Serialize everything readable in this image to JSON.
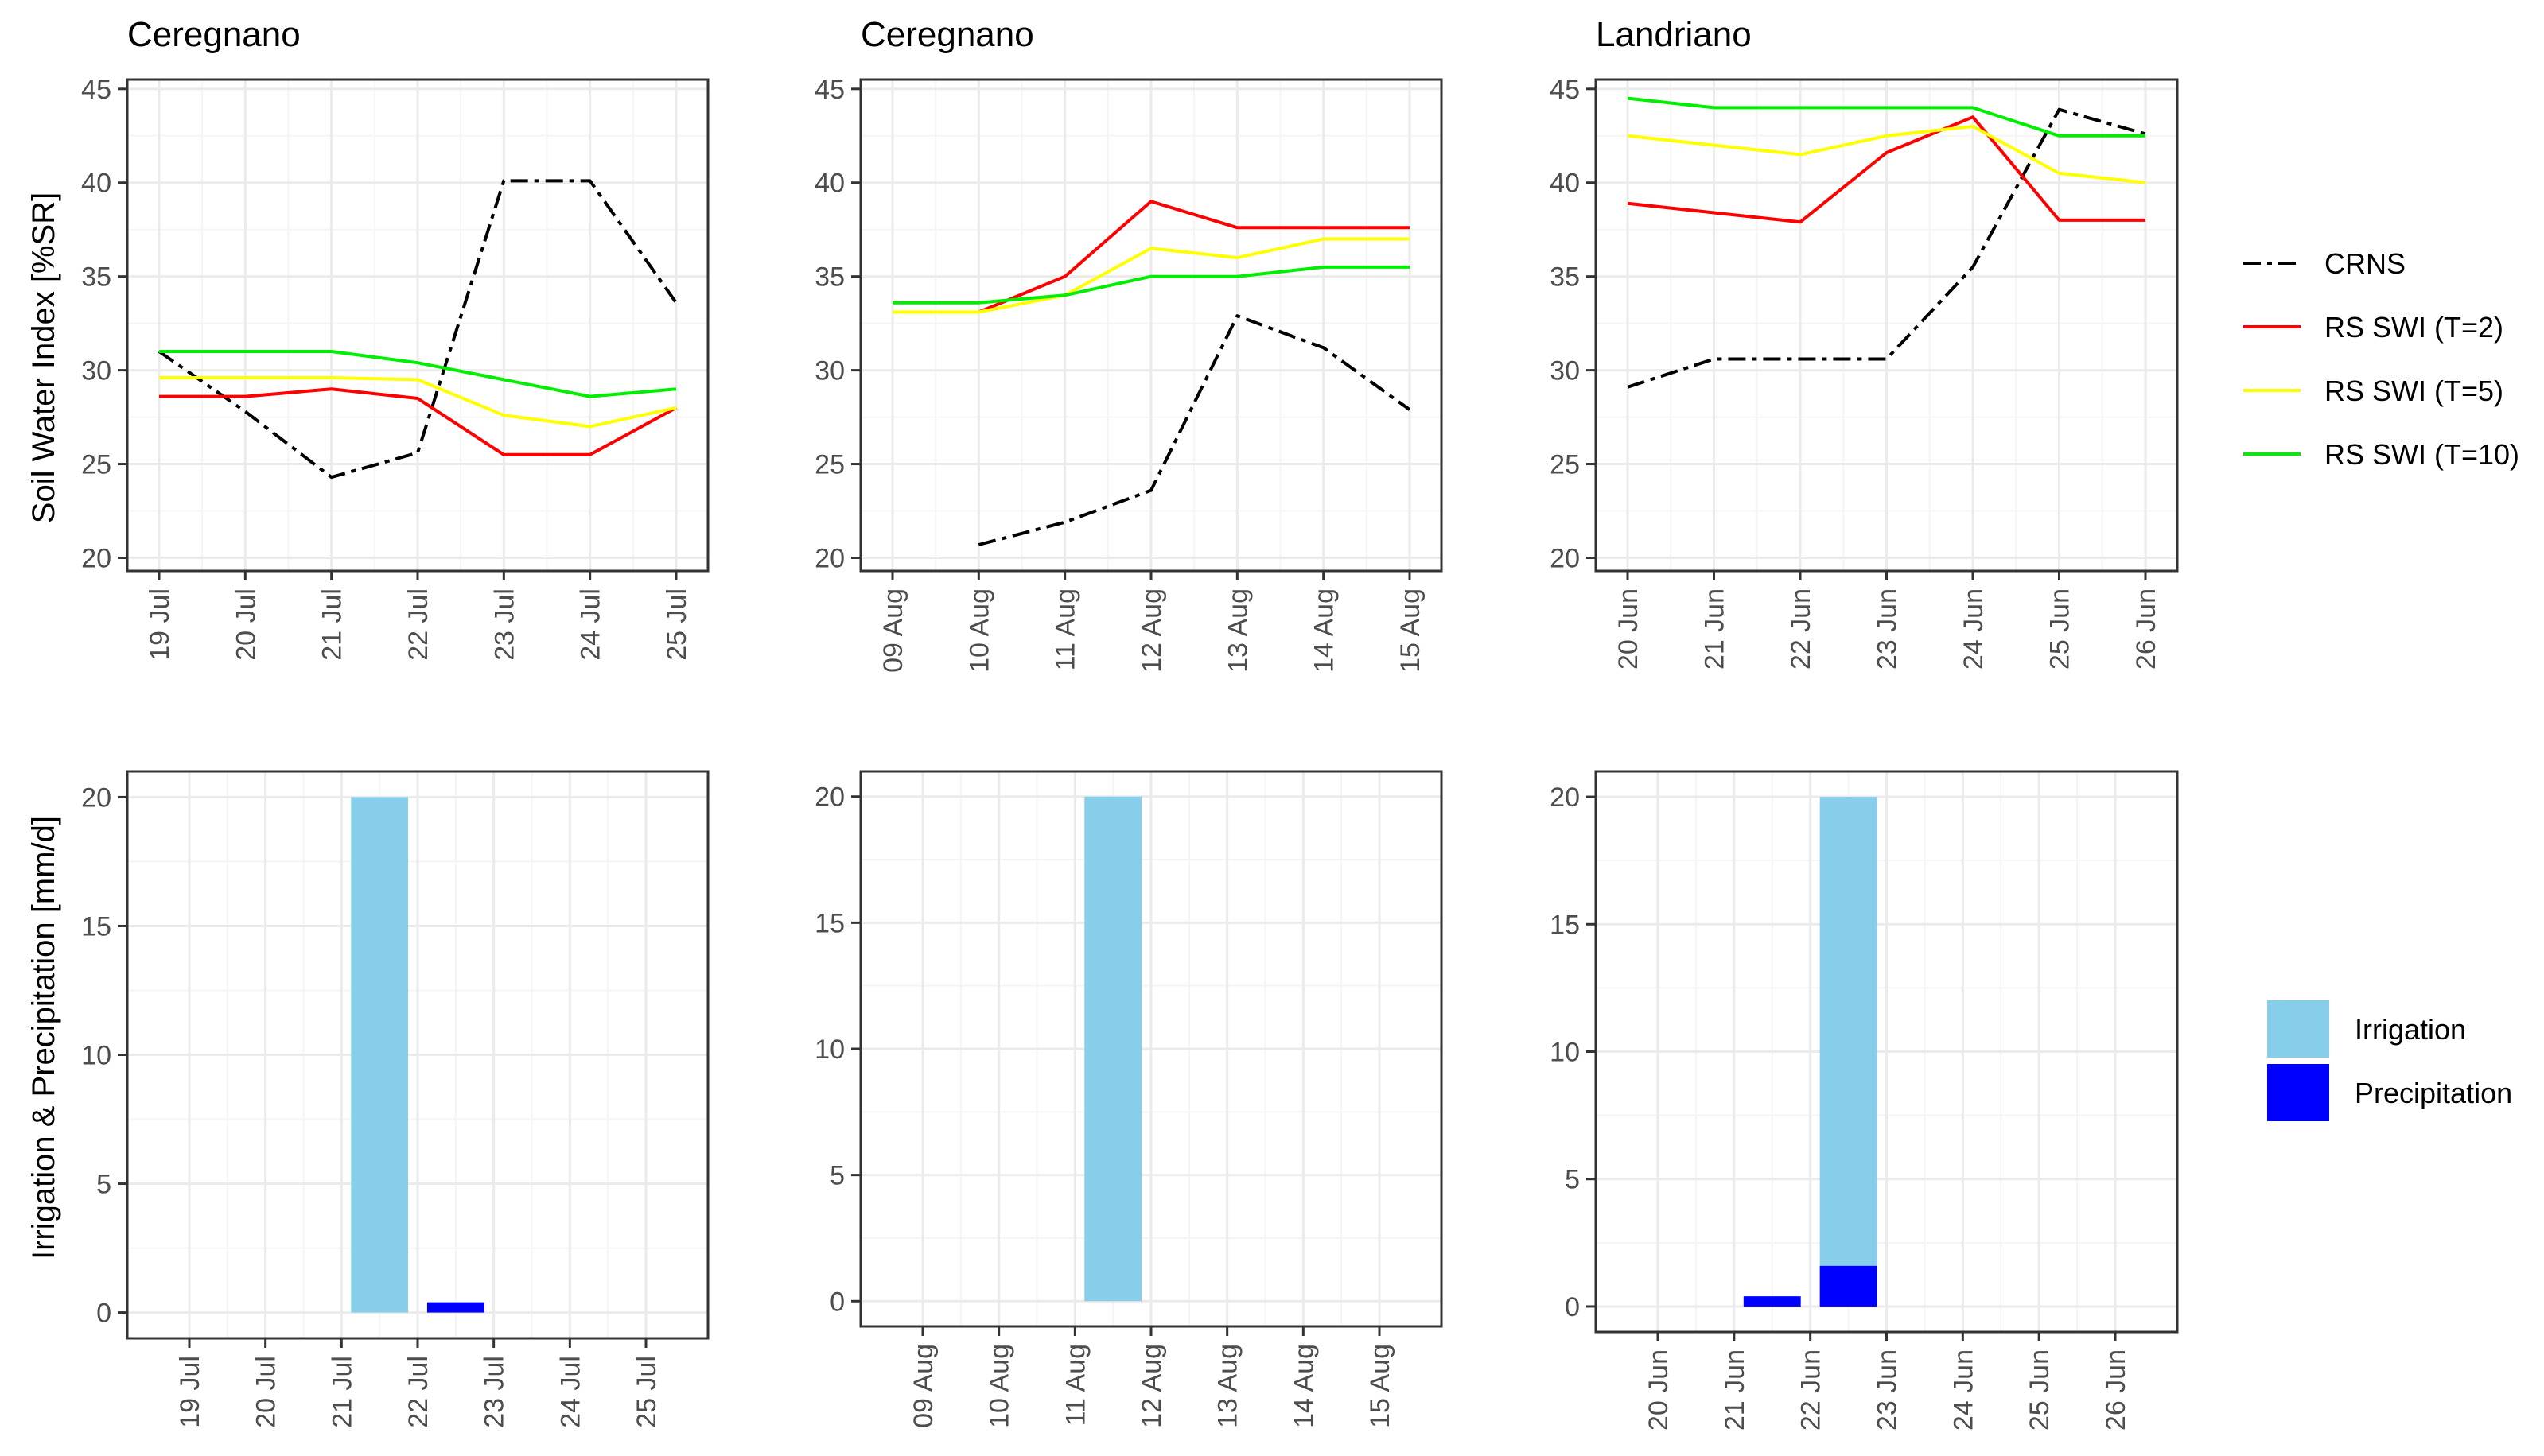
{
  "colors": {
    "crns": "#000000",
    "swi_t2": "#ff0000",
    "swi_t5": "#ffff00",
    "swi_t10": "#00ee00",
    "irrigation": "#87ceeb",
    "precipitation": "#0000ff",
    "grid_major": "#ebebeb",
    "grid_minor": "#f5f5f5",
    "panel_border": "#333333"
  },
  "legend_lines": {
    "entries": [
      {
        "label": "CRNS",
        "series": "crns"
      },
      {
        "label": "RS SWI (T=2)",
        "series": "swi_t2"
      },
      {
        "label": "RS SWI (T=5)",
        "series": "swi_t5"
      },
      {
        "label": "RS SWI (T=10)",
        "series": "swi_t10"
      }
    ]
  },
  "legend_bars": {
    "entries": [
      {
        "label": "Irrigation",
        "series": "irrigation"
      },
      {
        "label": "Precipitation",
        "series": "precipitation"
      }
    ]
  },
  "chart_data": [
    {
      "type": "line",
      "title": "Ceregnano",
      "ylabel": "Soil Water Index [%SR]",
      "xlabel": "",
      "categories": [
        "19 Jul",
        "20 Jul",
        "21 Jul",
        "22 Jul",
        "23 Jul",
        "24 Jul",
        "25 Jul"
      ],
      "ylim": [
        19.3,
        45.5
      ],
      "yticks": [
        20,
        25,
        30,
        35,
        40,
        45
      ],
      "grid": true,
      "series": [
        {
          "name": "CRNS",
          "key": "crns",
          "dash": true,
          "values": [
            31.0,
            27.8,
            24.3,
            25.6,
            40.1,
            40.1,
            33.6
          ]
        },
        {
          "name": "RS SWI (T=2)",
          "key": "swi_t2",
          "values": [
            28.6,
            28.6,
            29.0,
            28.5,
            25.5,
            25.5,
            28.0
          ]
        },
        {
          "name": "RS SWI (T=5)",
          "key": "swi_t5",
          "values": [
            29.6,
            29.6,
            29.6,
            29.5,
            27.6,
            27.0,
            28.0
          ]
        },
        {
          "name": "RS SWI (T=10)",
          "key": "swi_t10",
          "values": [
            31.0,
            31.0,
            31.0,
            30.4,
            29.5,
            28.6,
            29.0
          ]
        }
      ]
    },
    {
      "type": "line",
      "title": "Ceregnano",
      "ylabel": "",
      "xlabel": "",
      "categories": [
        "09 Aug",
        "10 Aug",
        "11 Aug",
        "12 Aug",
        "13 Aug",
        "14 Aug",
        "15 Aug"
      ],
      "ylim": [
        19.3,
        45.5
      ],
      "yticks": [
        20,
        25,
        30,
        35,
        40,
        45
      ],
      "grid": true,
      "series": [
        {
          "name": "CRNS",
          "key": "crns",
          "dash": true,
          "values": [
            null,
            20.7,
            21.9,
            23.6,
            32.9,
            31.2,
            27.9
          ]
        },
        {
          "name": "RS SWI (T=2)",
          "key": "swi_t2",
          "values": [
            null,
            33.1,
            35.0,
            39.0,
            37.6,
            37.6,
            37.6
          ]
        },
        {
          "name": "RS SWI (T=5)",
          "key": "swi_t5",
          "values": [
            33.1,
            33.1,
            34.0,
            36.5,
            36.0,
            37.0,
            37.0
          ]
        },
        {
          "name": "RS SWI (T=10)",
          "key": "swi_t10",
          "values": [
            33.6,
            33.6,
            34.0,
            35.0,
            35.0,
            35.5,
            35.5
          ]
        }
      ]
    },
    {
      "type": "line",
      "title": "Landriano",
      "ylabel": "",
      "xlabel": "",
      "categories": [
        "20 Jun",
        "21 Jun",
        "22 Jun",
        "23 Jun",
        "24 Jun",
        "25 Jun",
        "26 Jun"
      ],
      "ylim": [
        19.3,
        45.5
      ],
      "yticks": [
        20,
        25,
        30,
        35,
        40,
        45
      ],
      "grid": true,
      "series": [
        {
          "name": "CRNS",
          "key": "crns",
          "dash": true,
          "values": [
            29.1,
            30.6,
            30.6,
            30.6,
            35.5,
            43.9,
            42.6
          ]
        },
        {
          "name": "RS SWI (T=2)",
          "key": "swi_t2",
          "values": [
            38.9,
            38.4,
            37.9,
            41.6,
            43.5,
            38.0,
            38.0
          ]
        },
        {
          "name": "RS SWI (T=5)",
          "key": "swi_t5",
          "values": [
            42.5,
            42.0,
            41.5,
            42.5,
            43.0,
            40.5,
            40.0
          ]
        },
        {
          "name": "RS SWI (T=10)",
          "key": "swi_t10",
          "values": [
            44.5,
            44.0,
            44.0,
            44.0,
            44.0,
            42.5,
            42.5
          ]
        }
      ]
    },
    {
      "type": "bar",
      "title": "",
      "ylabel": "Irrigation & Precipitation [mm/d]",
      "xlabel": "",
      "categories": [
        "19 Jul",
        "20 Jul",
        "21 Jul",
        "22 Jul",
        "23 Jul",
        "24 Jul",
        "25 Jul"
      ],
      "ylim": [
        -1.0,
        21.0
      ],
      "yticks": [
        0,
        5,
        10,
        15,
        20
      ],
      "grid": true,
      "series": [
        {
          "name": "Irrigation",
          "key": "irrigation",
          "values": [
            0,
            0,
            0,
            20,
            0,
            0,
            0
          ]
        },
        {
          "name": "Precipitation",
          "key": "precipitation",
          "values": [
            0,
            0,
            0,
            0,
            0.4,
            0,
            0
          ]
        }
      ]
    },
    {
      "type": "bar",
      "title": "",
      "ylabel": "",
      "xlabel": "",
      "categories": [
        "09 Aug",
        "10 Aug",
        "11 Aug",
        "12 Aug",
        "13 Aug",
        "14 Aug",
        "15 Aug"
      ],
      "ylim": [
        -1.0,
        21.0
      ],
      "yticks": [
        0,
        5,
        10,
        15,
        20
      ],
      "grid": true,
      "series": [
        {
          "name": "Irrigation",
          "key": "irrigation",
          "values": [
            0,
            0,
            0,
            20,
            0,
            0,
            0
          ]
        },
        {
          "name": "Precipitation",
          "key": "precipitation",
          "values": [
            0,
            0,
            0,
            0,
            0,
            0,
            0
          ]
        }
      ]
    },
    {
      "type": "bar",
      "title": "",
      "ylabel": "",
      "xlabel": "",
      "categories": [
        "20 Jun",
        "21 Jun",
        "22 Jun",
        "23 Jun",
        "24 Jun",
        "25 Jun",
        "26 Jun"
      ],
      "ylim": [
        -1.0,
        21.0
      ],
      "yticks": [
        0,
        5,
        10,
        15,
        20
      ],
      "grid": true,
      "series": [
        {
          "name": "Irrigation",
          "key": "irrigation",
          "values": [
            0,
            0,
            0,
            18.4,
            0,
            0,
            0
          ]
        },
        {
          "name": "Precipitation",
          "key": "precipitation",
          "values": [
            0,
            0,
            0.4,
            1.6,
            0,
            0,
            0
          ]
        }
      ]
    }
  ]
}
